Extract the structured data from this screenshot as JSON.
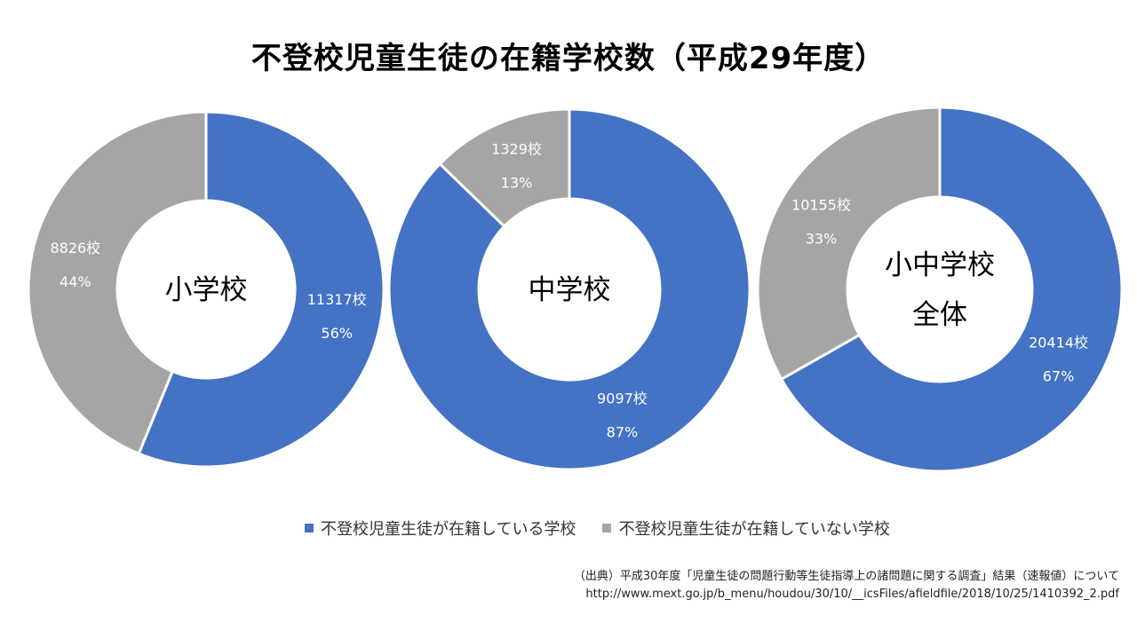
{
  "colors": {
    "primary": "#4472C4",
    "secondary": "#A5A5A5"
  },
  "chart_data": {
    "type": "pie",
    "title": "不登校児童生徒の在籍学校数（平成29年度）",
    "series_labels": [
      "不登校児童生徒が在籍している学校",
      "不登校児童生徒が在籍していない学校"
    ],
    "legend_position": "bottom",
    "charts": [
      {
        "center_label": [
          "小学校"
        ],
        "values": [
          11317,
          8826
        ],
        "value_labels": [
          "11317校",
          "8826校"
        ],
        "percent_labels": [
          "56%",
          "44%"
        ]
      },
      {
        "center_label": [
          "中学校"
        ],
        "values": [
          9097,
          1329
        ],
        "value_labels": [
          "9097校",
          "1329校"
        ],
        "percent_labels": [
          "87%",
          "13%"
        ]
      },
      {
        "center_label": [
          "小中学校",
          "全体"
        ],
        "values": [
          20414,
          10155
        ],
        "value_labels": [
          "20414校",
          "10155校"
        ],
        "percent_labels": [
          "67%",
          "33%"
        ]
      }
    ]
  },
  "source": {
    "line1": "（出典）平成30年度「児童生徒の問題行動等生徒指導上の諸問題に関する調査」結果（速報値）について",
    "line2": "http://www.mext.go.jp/b_menu/houdou/30/10/__icsFiles/afieldfile/2018/10/25/1410392_2.pdf"
  }
}
